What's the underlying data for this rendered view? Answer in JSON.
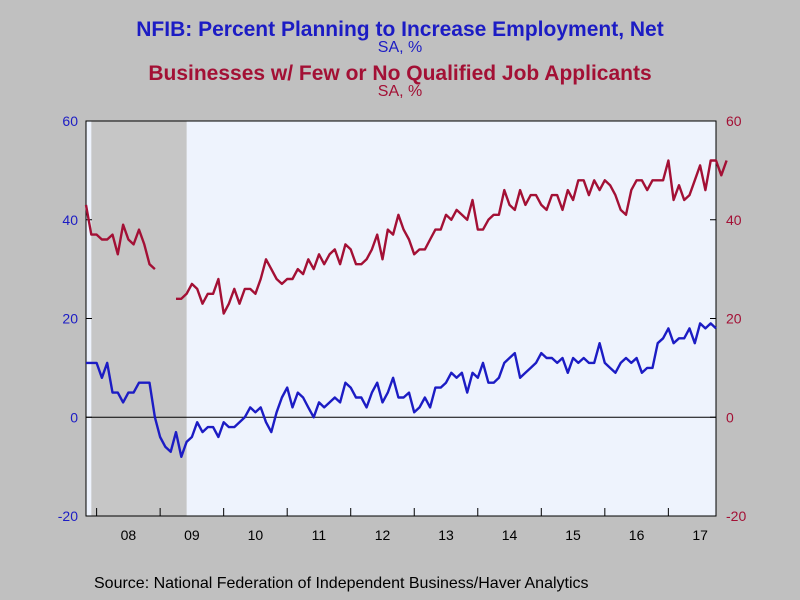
{
  "chart_data": {
    "type": "line",
    "title": "NFIB: Percent Planning to Increase Employment, Net",
    "title_unit": "SA, %",
    "title2": "Businesses w/ Few or No Qualified Job Applicants",
    "title2_unit": "SA, %",
    "source": "Source:  National Federation of Independent Business/Haver Analytics",
    "left_axis": {
      "ylim": [
        -20,
        60
      ],
      "ticks": [
        "60",
        "40",
        "20",
        "0",
        "-20"
      ],
      "color": "#1c1cc4"
    },
    "right_axis": {
      "ylim": [
        -20,
        60
      ],
      "ticks": [
        "60",
        "40",
        "20",
        "0",
        "-20"
      ],
      "color": "#a31035"
    },
    "x_ticks": [
      "08",
      "09",
      "10",
      "11",
      "12",
      "13",
      "14",
      "15",
      "16",
      "17"
    ],
    "x_range": [
      2007.833,
      2017.667
    ],
    "recession": [
      2007.917,
      2009.417
    ],
    "grid": false,
    "series": [
      {
        "name": "NFIB: Percent Planning to Increase Employment, Net",
        "color": "#1c1cc4",
        "axis": "left",
        "points": [
          [
            2007.833,
            11
          ],
          [
            2007.917,
            11
          ],
          [
            2008.0,
            11
          ],
          [
            2008.083,
            8
          ],
          [
            2008.167,
            11
          ],
          [
            2008.25,
            5
          ],
          [
            2008.333,
            5
          ],
          [
            2008.417,
            3
          ],
          [
            2008.5,
            5
          ],
          [
            2008.583,
            5
          ],
          [
            2008.667,
            7
          ],
          [
            2008.75,
            7
          ],
          [
            2008.833,
            7
          ],
          [
            2008.917,
            0
          ],
          [
            2009.0,
            -4
          ],
          [
            2009.083,
            -6
          ],
          [
            2009.167,
            -7
          ],
          [
            2009.25,
            -3
          ],
          [
            2009.333,
            -8
          ],
          [
            2009.417,
            -5
          ],
          [
            2009.5,
            -4
          ],
          [
            2009.583,
            -1
          ],
          [
            2009.667,
            -3
          ],
          [
            2009.75,
            -2
          ],
          [
            2009.833,
            -2
          ],
          [
            2009.917,
            -4
          ],
          [
            2010.0,
            -1
          ],
          [
            2010.083,
            -2
          ],
          [
            2010.167,
            -2
          ],
          [
            2010.25,
            -1
          ],
          [
            2010.333,
            0
          ],
          [
            2010.417,
            2
          ],
          [
            2010.5,
            1
          ],
          [
            2010.583,
            2
          ],
          [
            2010.667,
            -1
          ],
          [
            2010.75,
            -3
          ],
          [
            2010.833,
            1
          ],
          [
            2010.917,
            4
          ],
          [
            2011.0,
            6
          ],
          [
            2011.083,
            2
          ],
          [
            2011.167,
            5
          ],
          [
            2011.25,
            4
          ],
          [
            2011.333,
            2
          ],
          [
            2011.417,
            0
          ],
          [
            2011.5,
            3
          ],
          [
            2011.583,
            2
          ],
          [
            2011.667,
            3
          ],
          [
            2011.75,
            4
          ],
          [
            2011.833,
            3
          ],
          [
            2011.917,
            7
          ],
          [
            2012.0,
            6
          ],
          [
            2012.083,
            4
          ],
          [
            2012.167,
            4
          ],
          [
            2012.25,
            2
          ],
          [
            2012.333,
            5
          ],
          [
            2012.417,
            7
          ],
          [
            2012.5,
            3
          ],
          [
            2012.583,
            5
          ],
          [
            2012.667,
            8
          ],
          [
            2012.75,
            4
          ],
          [
            2012.833,
            4
          ],
          [
            2012.917,
            5
          ],
          [
            2013.0,
            1
          ],
          [
            2013.083,
            2
          ],
          [
            2013.167,
            4
          ],
          [
            2013.25,
            2
          ],
          [
            2013.333,
            6
          ],
          [
            2013.417,
            6
          ],
          [
            2013.5,
            7
          ],
          [
            2013.583,
            9
          ],
          [
            2013.667,
            8
          ],
          [
            2013.75,
            9
          ],
          [
            2013.833,
            5
          ],
          [
            2013.917,
            9
          ],
          [
            2014.0,
            8
          ],
          [
            2014.083,
            11
          ],
          [
            2014.167,
            7
          ],
          [
            2014.25,
            7
          ],
          [
            2014.333,
            8
          ],
          [
            2014.417,
            11
          ],
          [
            2014.5,
            12
          ],
          [
            2014.583,
            13
          ],
          [
            2014.667,
            8
          ],
          [
            2014.75,
            9
          ],
          [
            2014.833,
            10
          ],
          [
            2014.917,
            11
          ],
          [
            2015.0,
            13
          ],
          [
            2015.083,
            12
          ],
          [
            2015.167,
            12
          ],
          [
            2015.25,
            11
          ],
          [
            2015.333,
            12
          ],
          [
            2015.417,
            9
          ],
          [
            2015.5,
            12
          ],
          [
            2015.583,
            11
          ],
          [
            2015.667,
            12
          ],
          [
            2015.75,
            11
          ],
          [
            2015.833,
            11
          ],
          [
            2015.917,
            15
          ],
          [
            2016.0,
            11
          ],
          [
            2016.083,
            10
          ],
          [
            2016.167,
            9
          ],
          [
            2016.25,
            11
          ],
          [
            2016.333,
            12
          ],
          [
            2016.417,
            11
          ],
          [
            2016.5,
            12
          ],
          [
            2016.583,
            9
          ],
          [
            2016.667,
            10
          ],
          [
            2016.75,
            10
          ],
          [
            2016.833,
            15
          ],
          [
            2016.917,
            16
          ],
          [
            2017.0,
            18
          ],
          [
            2017.083,
            15
          ],
          [
            2017.167,
            16
          ],
          [
            2017.25,
            16
          ],
          [
            2017.333,
            18
          ],
          [
            2017.417,
            15
          ],
          [
            2017.5,
            19
          ],
          [
            2017.583,
            18
          ],
          [
            2017.667,
            19
          ],
          [
            2017.75,
            18
          ]
        ]
      },
      {
        "name": "Businesses w/ Few or No Qualified Job Applicants",
        "color": "#a31035",
        "axis": "right",
        "segments": [
          [
            [
              2007.833,
              43
            ],
            [
              2007.917,
              37
            ],
            [
              2008.0,
              37
            ],
            [
              2008.083,
              36
            ],
            [
              2008.167,
              36
            ],
            [
              2008.25,
              37
            ],
            [
              2008.333,
              33
            ],
            [
              2008.417,
              39
            ],
            [
              2008.5,
              36
            ],
            [
              2008.583,
              35
            ],
            [
              2008.667,
              38
            ],
            [
              2008.75,
              35
            ],
            [
              2008.833,
              31
            ],
            [
              2008.917,
              30
            ]
          ],
          [
            [
              2009.25,
              24
            ],
            [
              2009.333,
              24
            ],
            [
              2009.417,
              25
            ],
            [
              2009.5,
              27
            ],
            [
              2009.583,
              26
            ],
            [
              2009.667,
              23
            ],
            [
              2009.75,
              25
            ],
            [
              2009.833,
              25
            ],
            [
              2009.917,
              28
            ],
            [
              2010.0,
              21
            ],
            [
              2010.083,
              23
            ],
            [
              2010.167,
              26
            ],
            [
              2010.25,
              23
            ],
            [
              2010.333,
              26
            ],
            [
              2010.417,
              26
            ],
            [
              2010.5,
              25
            ],
            [
              2010.583,
              28
            ],
            [
              2010.667,
              32
            ],
            [
              2010.75,
              30
            ],
            [
              2010.833,
              28
            ],
            [
              2010.917,
              27
            ],
            [
              2011.0,
              28
            ],
            [
              2011.083,
              28
            ],
            [
              2011.167,
              30
            ],
            [
              2011.25,
              29
            ],
            [
              2011.333,
              32
            ],
            [
              2011.417,
              30
            ],
            [
              2011.5,
              33
            ],
            [
              2011.583,
              31
            ],
            [
              2011.667,
              33
            ],
            [
              2011.75,
              34
            ],
            [
              2011.833,
              31
            ],
            [
              2011.917,
              35
            ],
            [
              2012.0,
              34
            ],
            [
              2012.083,
              31
            ],
            [
              2012.167,
              31
            ],
            [
              2012.25,
              32
            ],
            [
              2012.333,
              34
            ],
            [
              2012.417,
              37
            ],
            [
              2012.5,
              32
            ],
            [
              2012.583,
              38
            ],
            [
              2012.667,
              37
            ],
            [
              2012.75,
              41
            ],
            [
              2012.833,
              38
            ],
            [
              2012.917,
              36
            ],
            [
              2013.0,
              33
            ],
            [
              2013.083,
              34
            ],
            [
              2013.167,
              34
            ],
            [
              2013.25,
              36
            ],
            [
              2013.333,
              38
            ],
            [
              2013.417,
              38
            ],
            [
              2013.5,
              41
            ],
            [
              2013.583,
              40
            ],
            [
              2013.667,
              42
            ],
            [
              2013.75,
              41
            ],
            [
              2013.833,
              40
            ],
            [
              2013.917,
              44
            ],
            [
              2014.0,
              38
            ],
            [
              2014.083,
              38
            ],
            [
              2014.167,
              40
            ],
            [
              2014.25,
              41
            ],
            [
              2014.333,
              41
            ],
            [
              2014.417,
              46
            ],
            [
              2014.5,
              43
            ],
            [
              2014.583,
              42
            ],
            [
              2014.667,
              46
            ],
            [
              2014.75,
              43
            ],
            [
              2014.833,
              45
            ],
            [
              2014.917,
              45
            ],
            [
              2015.0,
              43
            ],
            [
              2015.083,
              42
            ],
            [
              2015.167,
              45
            ],
            [
              2015.25,
              45
            ],
            [
              2015.333,
              42
            ],
            [
              2015.417,
              46
            ],
            [
              2015.5,
              44
            ],
            [
              2015.583,
              48
            ],
            [
              2015.667,
              48
            ],
            [
              2015.75,
              45
            ],
            [
              2015.833,
              48
            ],
            [
              2015.917,
              46
            ],
            [
              2016.0,
              48
            ],
            [
              2016.083,
              47
            ],
            [
              2016.167,
              45
            ],
            [
              2016.25,
              42
            ],
            [
              2016.333,
              41
            ],
            [
              2016.417,
              46
            ],
            [
              2016.5,
              48
            ],
            [
              2016.583,
              48
            ],
            [
              2016.667,
              46
            ],
            [
              2016.75,
              48
            ],
            [
              2016.833,
              48
            ],
            [
              2016.917,
              48
            ],
            [
              2017.0,
              52
            ],
            [
              2017.083,
              44
            ],
            [
              2017.167,
              47
            ],
            [
              2017.25,
              44
            ],
            [
              2017.333,
              45
            ],
            [
              2017.417,
              48
            ],
            [
              2017.5,
              51
            ],
            [
              2017.583,
              46
            ],
            [
              2017.667,
              52
            ],
            [
              2017.75,
              52
            ],
            [
              2017.833,
              49
            ],
            [
              2017.917,
              52
            ]
          ]
        ]
      }
    ]
  }
}
